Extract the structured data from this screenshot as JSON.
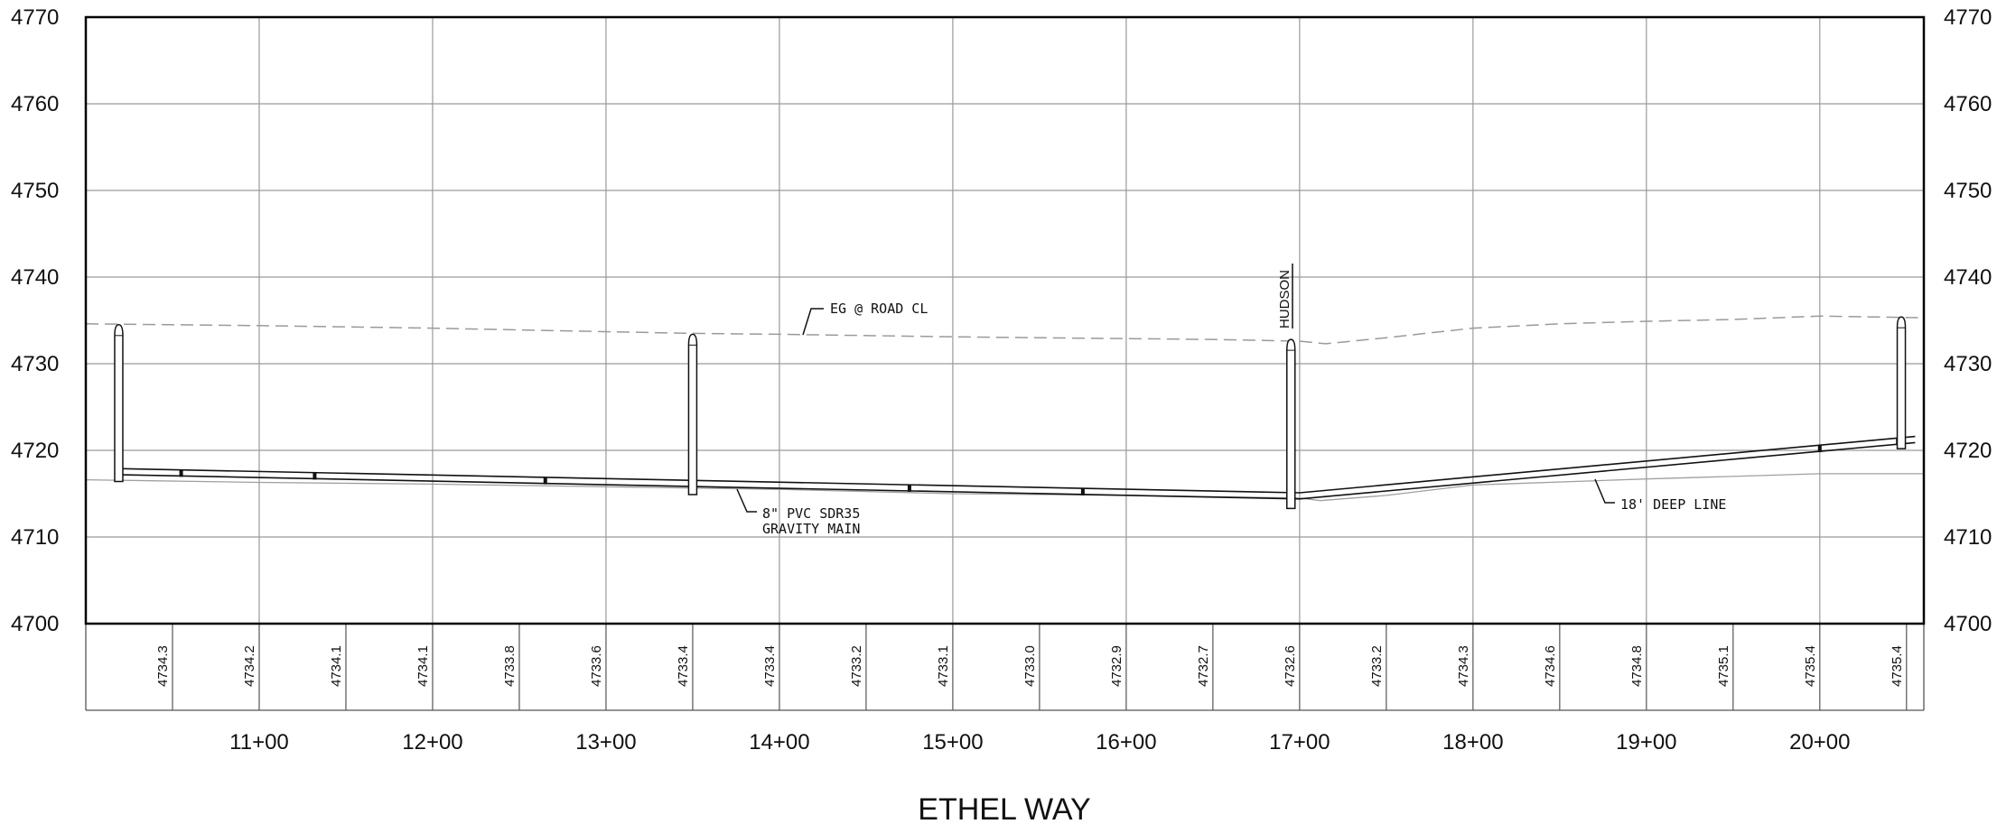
{
  "title": "ETHEL WAY",
  "elevation_axis": {
    "min": 4700,
    "max": 4770,
    "step": 10,
    "labels": [
      "4770",
      "4760",
      "4750",
      "4740",
      "4730",
      "4720",
      "4710",
      "4700"
    ]
  },
  "station_axis": {
    "min_station": 1000,
    "max_station": 2060,
    "labels": [
      {
        "text": "11+00",
        "station": 1100
      },
      {
        "text": "12+00",
        "station": 1200
      },
      {
        "text": "13+00",
        "station": 1300
      },
      {
        "text": "14+00",
        "station": 1400
      },
      {
        "text": "15+00",
        "station": 1500
      },
      {
        "text": "16+00",
        "station": 1600
      },
      {
        "text": "17+00",
        "station": 1700
      },
      {
        "text": "18+00",
        "station": 1800
      },
      {
        "text": "19+00",
        "station": 1900
      },
      {
        "text": "20+00",
        "station": 2000
      }
    ]
  },
  "ground_elevations": [
    {
      "station": 1050,
      "text": "4734.3"
    },
    {
      "station": 1100,
      "text": "4734.2"
    },
    {
      "station": 1150,
      "text": "4734.1"
    },
    {
      "station": 1200,
      "text": "4734.1"
    },
    {
      "station": 1250,
      "text": "4733.8"
    },
    {
      "station": 1300,
      "text": "4733.6"
    },
    {
      "station": 1350,
      "text": "4733.4"
    },
    {
      "station": 1400,
      "text": "4733.4"
    },
    {
      "station": 1450,
      "text": "4733.2"
    },
    {
      "station": 1500,
      "text": "4733.1"
    },
    {
      "station": 1550,
      "text": "4733.0"
    },
    {
      "station": 1600,
      "text": "4732.9"
    },
    {
      "station": 1650,
      "text": "4732.7"
    },
    {
      "station": 1700,
      "text": "4732.6"
    },
    {
      "station": 1750,
      "text": "4733.2"
    },
    {
      "station": 1800,
      "text": "4734.3"
    },
    {
      "station": 1850,
      "text": "4734.6"
    },
    {
      "station": 1900,
      "text": "4734.8"
    },
    {
      "station": 1950,
      "text": "4735.1"
    },
    {
      "station": 2000,
      "text": "4735.4"
    },
    {
      "station": 2050,
      "text": "4735.4"
    }
  ],
  "existing_ground_profile": [
    [
      1000,
      4734.6
    ],
    [
      1100,
      4734.4
    ],
    [
      1200,
      4734.1
    ],
    [
      1300,
      4733.7
    ],
    [
      1350,
      4733.5
    ],
    [
      1400,
      4733.4
    ],
    [
      1500,
      4733.1
    ],
    [
      1600,
      4732.9
    ],
    [
      1650,
      4732.8
    ],
    [
      1700,
      4732.6
    ],
    [
      1715,
      4732.3
    ],
    [
      1750,
      4733.0
    ],
    [
      1800,
      4734.1
    ],
    [
      1850,
      4734.6
    ],
    [
      1900,
      4734.9
    ],
    [
      1950,
      4735.1
    ],
    [
      2000,
      4735.5
    ],
    [
      2060,
      4735.3
    ]
  ],
  "lower_ground_profile": [
    [
      1000,
      4716.6
    ],
    [
      1100,
      4716.3
    ],
    [
      1200,
      4716.1
    ],
    [
      1300,
      4715.8
    ],
    [
      1400,
      4715.5
    ],
    [
      1500,
      4715.0
    ],
    [
      1600,
      4714.8
    ],
    [
      1700,
      4714.5
    ],
    [
      1712,
      4714.2
    ],
    [
      1750,
      4714.8
    ],
    [
      1800,
      4716.0
    ],
    [
      1900,
      4716.7
    ],
    [
      2000,
      4717.3
    ],
    [
      2060,
      4717.3
    ]
  ],
  "pipe_top": [
    [
      1018,
      4717.9
    ],
    [
      1700,
      4715.1
    ],
    [
      2055,
      4721.6
    ]
  ],
  "pipe_bottom": [
    [
      1018,
      4717.2
    ],
    [
      1700,
      4714.4
    ],
    [
      2055,
      4720.9
    ]
  ],
  "pipe_joints": [
    1055,
    1132,
    1265,
    1475,
    1575,
    2000,
    2045
  ],
  "manholes": [
    {
      "station": 1019,
      "top": 4734.5,
      "bottom": 4716.4
    },
    {
      "station": 1350,
      "top": 4733.4,
      "bottom": 4714.9
    },
    {
      "station": 1695,
      "top": 4732.8,
      "bottom": 4713.3
    },
    {
      "station": 2047,
      "top": 4735.4,
      "bottom": 4720.2
    }
  ],
  "annotations": {
    "eg_label": "EG @ ROAD CL",
    "pipe_label_line1": "8\" PVC SDR35",
    "pipe_label_line2": "GRAVITY MAIN",
    "deep_line_label": "18' DEEP LINE",
    "crossing_label": "HUDSON"
  },
  "colors": {
    "grid": "#9a9a9a",
    "ground_dashed": "#9a9a9a",
    "ink": "#111111"
  }
}
